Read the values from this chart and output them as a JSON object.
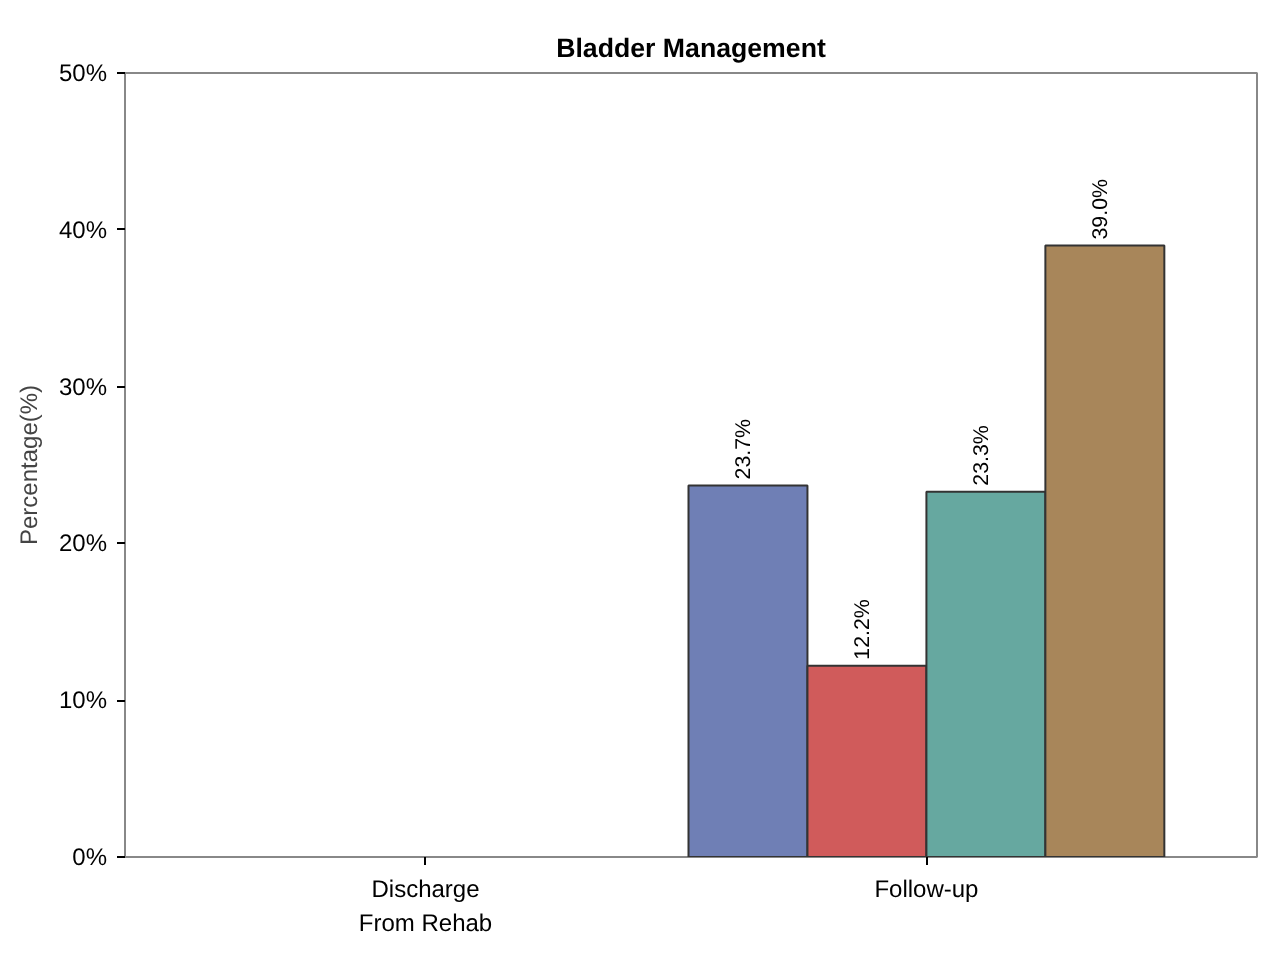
{
  "chart_data": {
    "type": "bar",
    "title": "Bladder Management",
    "ylabel": "Percentage(%)",
    "categories": [
      "Discharge\nFrom Rehab",
      "Follow-up"
    ],
    "series": [
      {
        "color": "#6f7fb5",
        "values": [
          null,
          23.7
        ],
        "value_labels": [
          null,
          "23.7%"
        ]
      },
      {
        "color": "#d05b5b",
        "values": [
          null,
          12.2
        ],
        "value_labels": [
          null,
          "12.2%"
        ]
      },
      {
        "color": "#66a8a0",
        "values": [
          null,
          23.3
        ],
        "value_labels": [
          null,
          "23.3%"
        ]
      },
      {
        "color": "#a8865a",
        "values": [
          null,
          39.0
        ],
        "value_labels": [
          null,
          "39.0%"
        ]
      }
    ],
    "ylim": [
      0,
      50
    ],
    "yticks": [
      {
        "value": 0,
        "label": "0%"
      },
      {
        "value": 10,
        "label": "10%"
      },
      {
        "value": 20,
        "label": "20%"
      },
      {
        "value": 30,
        "label": "30%"
      },
      {
        "value": 40,
        "label": "40%"
      },
      {
        "value": 50,
        "label": "50%"
      }
    ],
    "grid": false
  }
}
